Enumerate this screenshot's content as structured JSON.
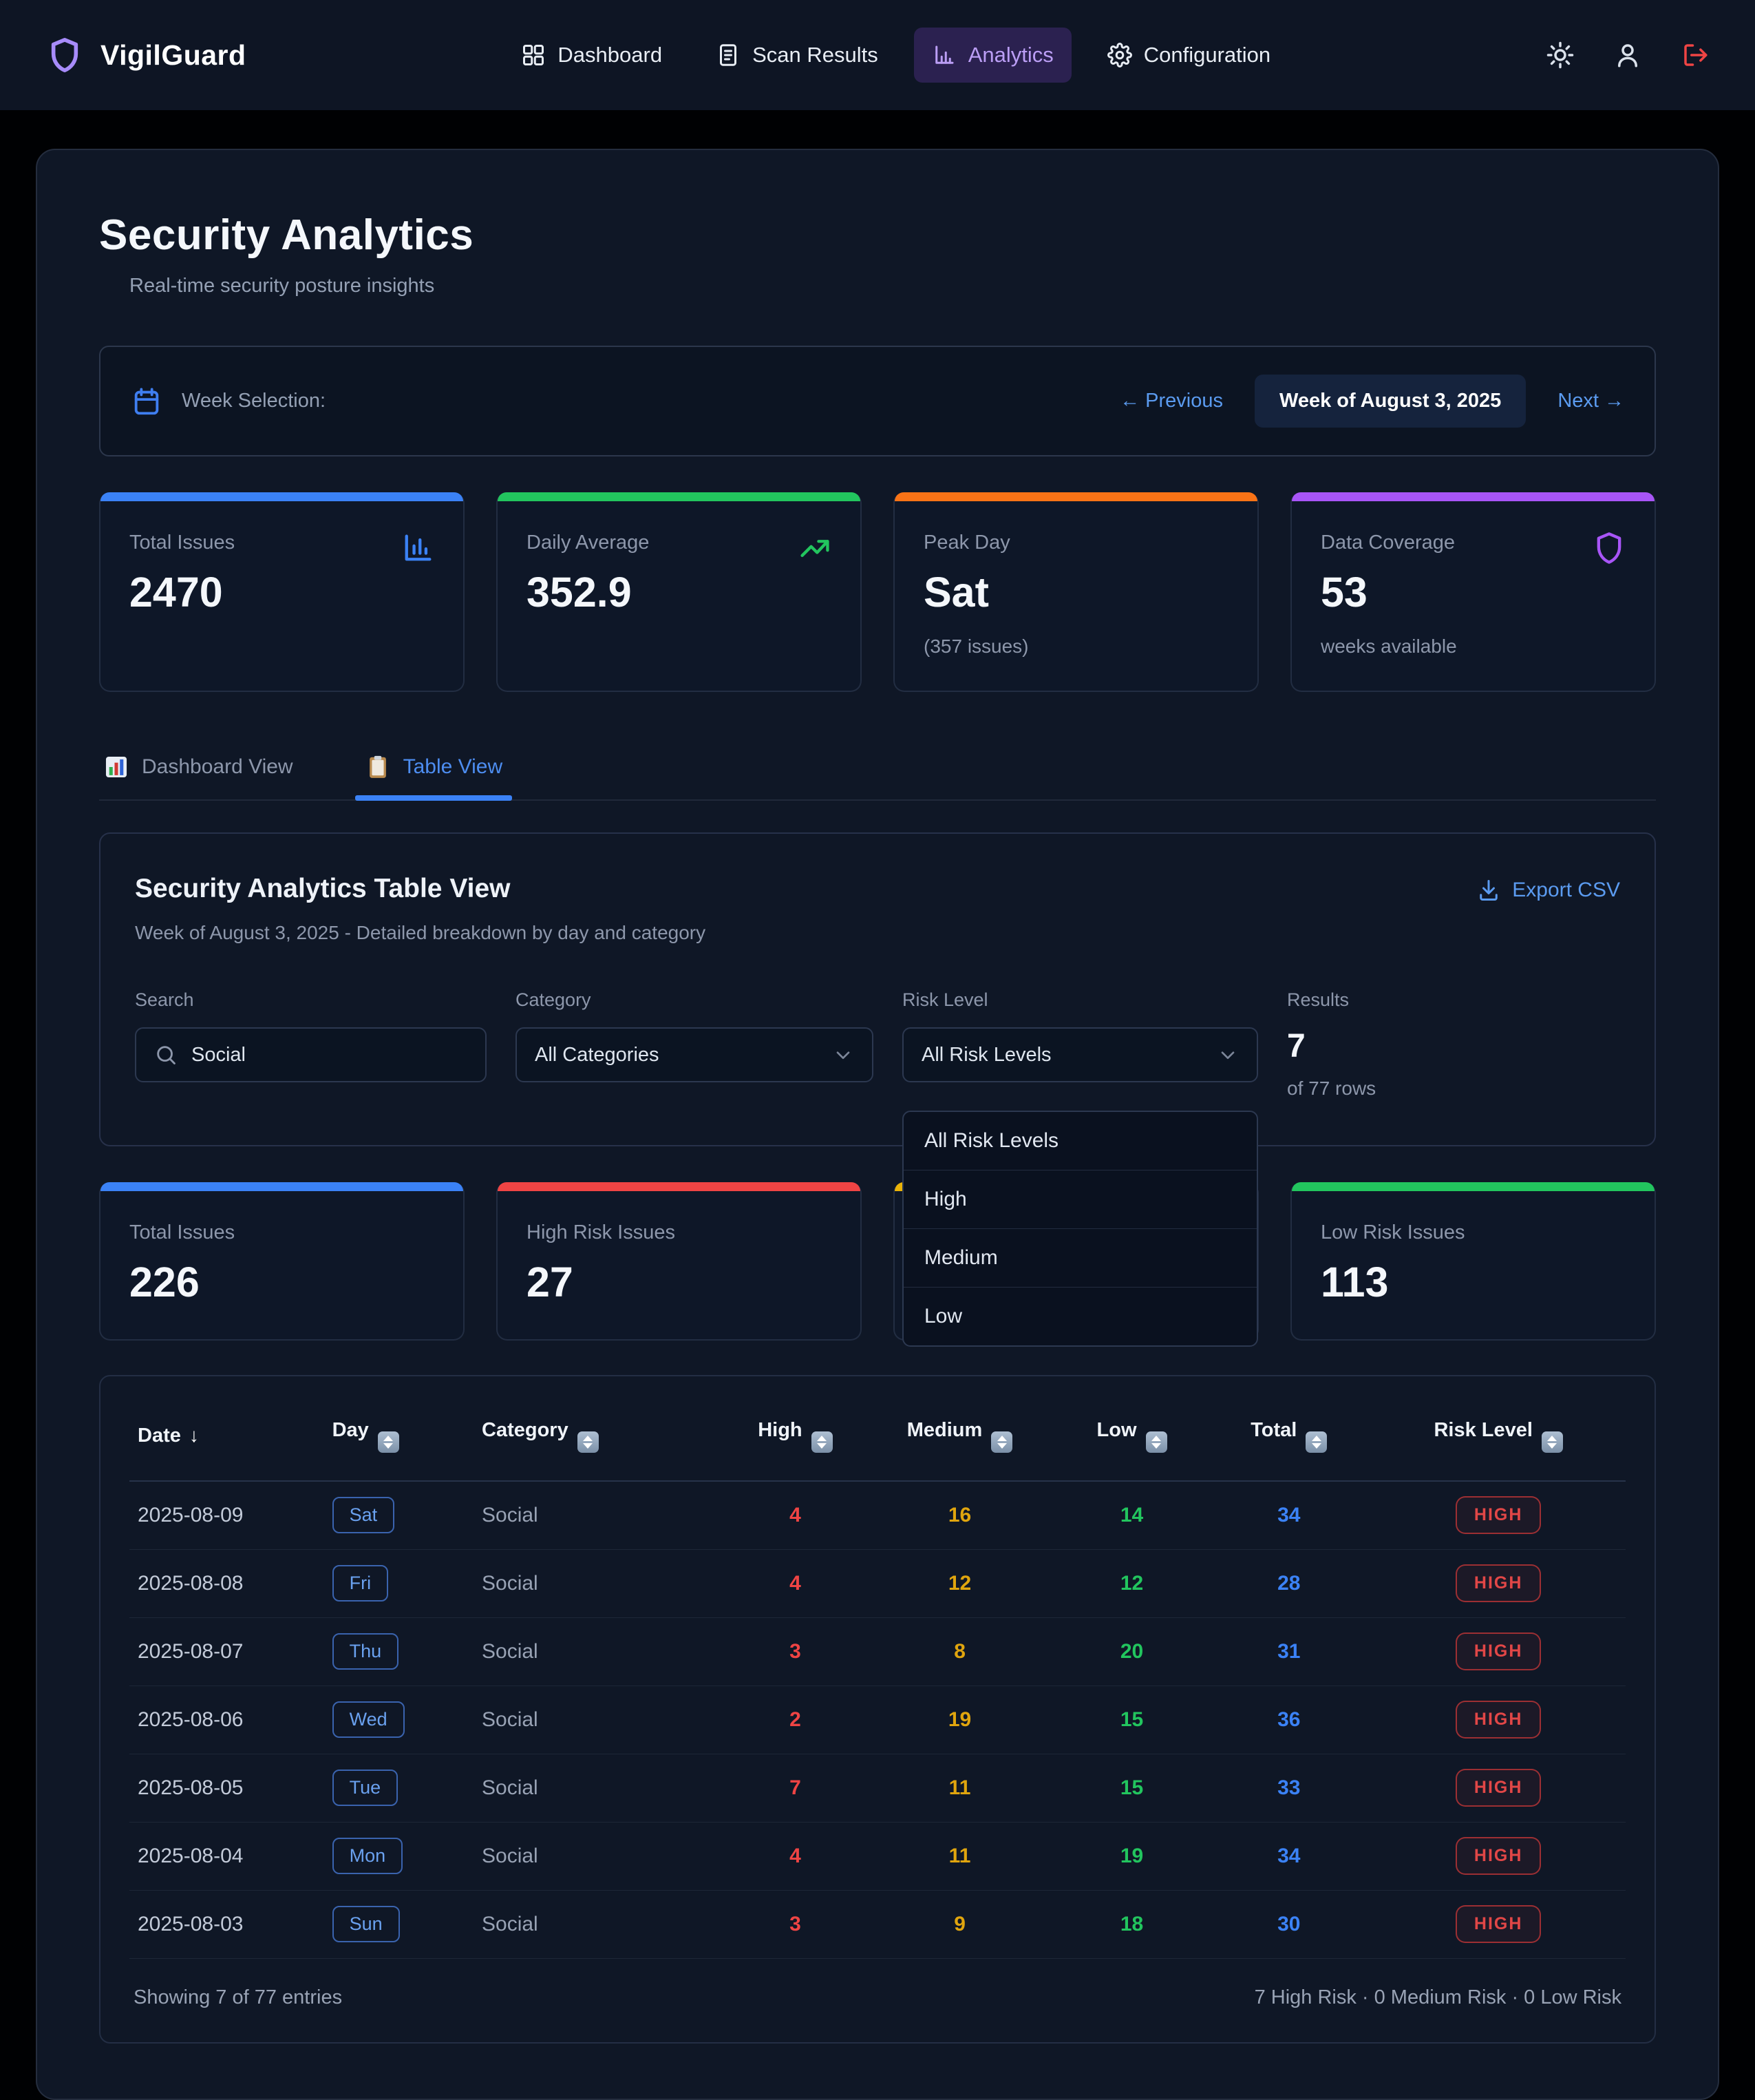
{
  "navbar": {
    "brand": "VigilGuard",
    "items": [
      {
        "label": "Dashboard",
        "icon": "grid",
        "active": false
      },
      {
        "label": "Scan Results",
        "icon": "doc",
        "active": false
      },
      {
        "label": "Analytics",
        "icon": "bars",
        "active": true
      },
      {
        "label": "Configuration",
        "icon": "gear",
        "active": false
      }
    ]
  },
  "header": {
    "title": "Security Analytics",
    "subtitle": "Real-time security posture insights"
  },
  "week": {
    "label": "Week Selection:",
    "prev": "← Previous",
    "current": "Week of August 3, 2025",
    "next": "Next →"
  },
  "stats_top": [
    {
      "label": "Total Issues",
      "value": "2470",
      "sub": "",
      "accent": "#3b82f6",
      "icon": "chart"
    },
    {
      "label": "Daily Average",
      "value": "352.9",
      "sub": "",
      "accent": "#22c55e",
      "icon": "trend"
    },
    {
      "label": "Peak Day",
      "value": "Sat",
      "sub": "(357 issues)",
      "accent": "#f97316",
      "icon": ""
    },
    {
      "label": "Data Coverage",
      "value": "53",
      "sub": "weeks available",
      "accent": "#a855f7",
      "icon": "shield"
    }
  ],
  "tabs": [
    {
      "label": "Dashboard View",
      "icon": "chartEmoji",
      "active": false
    },
    {
      "label": "Table View",
      "icon": "clipEmoji",
      "active": true
    }
  ],
  "table_card": {
    "title": "Security Analytics Table View",
    "subtitle": "Week of August 3, 2025 - Detailed breakdown by day and category",
    "export_label": "Export CSV"
  },
  "filters": {
    "search": {
      "label": "Search",
      "value": "Social"
    },
    "category": {
      "label": "Category",
      "value": "All Categories"
    },
    "risk": {
      "label": "Risk Level",
      "value": "All Risk Levels"
    },
    "results": {
      "label": "Results",
      "value": "7",
      "sub": "of 77 rows"
    }
  },
  "risk_dropdown": [
    "All Risk Levels",
    "High",
    "Medium",
    "Low"
  ],
  "stats_bottom": [
    {
      "label": "Total Issues",
      "value": "226",
      "sub": "",
      "accent": "#3b82f6",
      "icon": ""
    },
    {
      "label": "High Risk Issues",
      "value": "27",
      "sub": "",
      "accent": "#ef4444",
      "icon": ""
    },
    {
      "label": "",
      "value": "",
      "sub": "",
      "accent": "#eab308",
      "icon": ""
    },
    {
      "label": "Low Risk Issues",
      "value": "113",
      "sub": "",
      "accent": "#22c55e",
      "icon": ""
    }
  ],
  "table": {
    "columns": [
      {
        "label": "Date",
        "sort": "active-desc",
        "align": "left",
        "width": "13%"
      },
      {
        "label": "Day",
        "sort": "both",
        "align": "left",
        "width": "10%"
      },
      {
        "label": "Category",
        "sort": "both",
        "align": "left",
        "width": "17%"
      },
      {
        "label": "High",
        "sort": "both",
        "align": "center",
        "width": "9%"
      },
      {
        "label": "Medium",
        "sort": "both",
        "align": "center",
        "width": "13%"
      },
      {
        "label": "Low",
        "sort": "both",
        "align": "center",
        "width": "10%"
      },
      {
        "label": "Total",
        "sort": "both",
        "align": "center",
        "width": "11%"
      },
      {
        "label": "Risk Level",
        "sort": "both",
        "align": "center",
        "width": "17%"
      }
    ],
    "rows": [
      {
        "date": "2025-08-09",
        "day": "Sat",
        "category": "Social",
        "high": "4",
        "medium": "16",
        "low": "14",
        "total": "34",
        "risk": "HIGH"
      },
      {
        "date": "2025-08-08",
        "day": "Fri",
        "category": "Social",
        "high": "4",
        "medium": "12",
        "low": "12",
        "total": "28",
        "risk": "HIGH"
      },
      {
        "date": "2025-08-07",
        "day": "Thu",
        "category": "Social",
        "high": "3",
        "medium": "8",
        "low": "20",
        "total": "31",
        "risk": "HIGH"
      },
      {
        "date": "2025-08-06",
        "day": "Wed",
        "category": "Social",
        "high": "2",
        "medium": "19",
        "low": "15",
        "total": "36",
        "risk": "HIGH"
      },
      {
        "date": "2025-08-05",
        "day": "Tue",
        "category": "Social",
        "high": "7",
        "medium": "11",
        "low": "15",
        "total": "33",
        "risk": "HIGH"
      },
      {
        "date": "2025-08-04",
        "day": "Mon",
        "category": "Social",
        "high": "4",
        "medium": "11",
        "low": "19",
        "total": "34",
        "risk": "HIGH"
      },
      {
        "date": "2025-08-03",
        "day": "Sun",
        "category": "Social",
        "high": "3",
        "medium": "9",
        "low": "18",
        "total": "30",
        "risk": "HIGH"
      }
    ]
  },
  "footer": {
    "left": "Showing 7 of 77 entries",
    "right": "7 High Risk · 0 Medium Risk · 0 Low Risk"
  },
  "colors": {
    "accent_blue": "#3b82f6",
    "accent_green": "#22c55e",
    "accent_orange": "#f97316",
    "accent_purple": "#a855f7",
    "accent_red": "#ef4444",
    "accent_yellow": "#eab308",
    "link_blue": "#5b9bf0",
    "high_text": "#ef4444",
    "medium_text": "#e0a50e",
    "low_text": "#22c55e",
    "total_text": "#3b82f6"
  }
}
